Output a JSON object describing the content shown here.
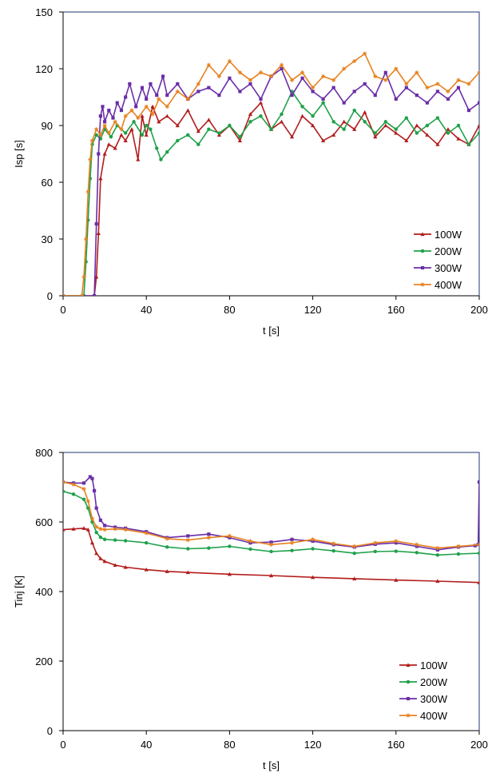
{
  "chart_data": [
    {
      "type": "line",
      "xlabel": "t [s]",
      "ylabel": "Isp [s]",
      "xlim": [
        0,
        200
      ],
      "ylim": [
        0,
        150
      ],
      "xticks": [
        "0",
        "40",
        "80",
        "120",
        "160",
        "200"
      ],
      "yticks": [
        "0",
        "30",
        "60",
        "90",
        "120",
        "150"
      ],
      "grid": false,
      "legend_position": "bottom-right",
      "series": [
        {
          "name": "100W",
          "color": "#b31c1c",
          "marker": "triangle",
          "x": [
            0,
            15,
            16,
            17,
            18,
            20,
            22,
            25,
            28,
            30,
            33,
            36,
            38,
            40,
            43,
            46,
            50,
            55,
            60,
            65,
            70,
            75,
            80,
            85,
            90,
            95,
            100,
            105,
            110,
            115,
            120,
            125,
            130,
            135,
            140,
            145,
            150,
            155,
            160,
            165,
            170,
            175,
            180,
            185,
            190,
            195,
            200
          ],
          "y": [
            0,
            0,
            10,
            33,
            62,
            75,
            80,
            78,
            85,
            82,
            88,
            72,
            95,
            85,
            100,
            92,
            95,
            90,
            98,
            87,
            93,
            85,
            90,
            82,
            96,
            102,
            88,
            92,
            84,
            95,
            90,
            82,
            85,
            92,
            88,
            97,
            84,
            90,
            86,
            82,
            90,
            85,
            80,
            88,
            83,
            80,
            90
          ]
        },
        {
          "name": "200W",
          "color": "#1fa14a",
          "marker": "circle",
          "x": [
            0,
            10,
            11,
            12,
            13,
            14,
            16,
            18,
            20,
            23,
            26,
            30,
            34,
            38,
            40,
            42,
            45,
            47,
            50,
            55,
            60,
            65,
            70,
            75,
            80,
            85,
            90,
            95,
            100,
            105,
            110,
            115,
            120,
            125,
            130,
            135,
            140,
            145,
            150,
            155,
            160,
            165,
            170,
            175,
            180,
            185,
            190,
            195,
            200
          ],
          "y": [
            0,
            0,
            18,
            40,
            62,
            80,
            85,
            83,
            88,
            84,
            90,
            86,
            92,
            85,
            90,
            88,
            78,
            72,
            76,
            82,
            85,
            80,
            88,
            86,
            90,
            84,
            92,
            95,
            88,
            96,
            108,
            100,
            95,
            102,
            92,
            88,
            98,
            92,
            86,
            92,
            88,
            94,
            86,
            90,
            94,
            86,
            90,
            80,
            86
          ]
        },
        {
          "name": "300W",
          "color": "#6a2ea8",
          "marker": "square",
          "x": [
            0,
            15,
            16,
            17,
            18,
            19,
            20,
            22,
            24,
            26,
            28,
            30,
            32,
            35,
            38,
            40,
            42,
            45,
            48,
            50,
            55,
            60,
            65,
            70,
            75,
            80,
            85,
            90,
            95,
            100,
            105,
            110,
            115,
            120,
            125,
            130,
            135,
            140,
            145,
            150,
            155,
            160,
            165,
            170,
            175,
            180,
            185,
            190,
            195,
            200
          ],
          "y": [
            0,
            0,
            38,
            75,
            95,
            100,
            92,
            98,
            94,
            102,
            98,
            105,
            112,
            100,
            110,
            104,
            112,
            106,
            116,
            106,
            112,
            104,
            108,
            110,
            106,
            115,
            108,
            112,
            104,
            116,
            120,
            106,
            115,
            108,
            104,
            110,
            102,
            108,
            112,
            106,
            118,
            104,
            110,
            106,
            102,
            108,
            104,
            110,
            98,
            102
          ]
        },
        {
          "name": "400W",
          "color": "#e6821f",
          "marker": "star",
          "x": [
            0,
            9,
            10,
            11,
            12,
            13,
            14,
            16,
            18,
            20,
            22,
            25,
            28,
            30,
            33,
            36,
            40,
            43,
            46,
            50,
            55,
            60,
            65,
            70,
            75,
            80,
            85,
            90,
            95,
            100,
            105,
            110,
            115,
            120,
            125,
            130,
            135,
            140,
            145,
            150,
            155,
            160,
            165,
            170,
            175,
            180,
            185,
            190,
            195,
            200
          ],
          "y": [
            0,
            0,
            10,
            30,
            55,
            72,
            82,
            88,
            85,
            90,
            86,
            92,
            88,
            95,
            98,
            94,
            100,
            96,
            104,
            100,
            108,
            104,
            112,
            122,
            116,
            124,
            118,
            114,
            118,
            116,
            122,
            114,
            118,
            110,
            116,
            114,
            120,
            124,
            128,
            116,
            114,
            120,
            112,
            118,
            110,
            112,
            108,
            114,
            112,
            118
          ]
        }
      ]
    },
    {
      "type": "line",
      "xlabel": "t [s]",
      "ylabel": "Tinj [K]",
      "xlim": [
        0,
        200
      ],
      "ylim": [
        0,
        800
      ],
      "xticks": [
        "0",
        "40",
        "80",
        "120",
        "160",
        "200"
      ],
      "yticks": [
        "0",
        "200",
        "400",
        "600",
        "800"
      ],
      "grid": false,
      "legend_position": "bottom-right",
      "series": [
        {
          "name": "100W",
          "color": "#b31c1c",
          "marker": "triangle",
          "x": [
            0,
            5,
            10,
            12,
            14,
            16,
            18,
            20,
            25,
            30,
            40,
            50,
            60,
            80,
            100,
            120,
            140,
            160,
            180,
            200
          ],
          "y": [
            578,
            580,
            582,
            578,
            540,
            510,
            495,
            487,
            476,
            470,
            463,
            458,
            455,
            450,
            446,
            441,
            437,
            433,
            430,
            426
          ]
        },
        {
          "name": "200W",
          "color": "#1fa14a",
          "marker": "circle",
          "x": [
            0,
            5,
            10,
            12,
            14,
            16,
            18,
            20,
            25,
            30,
            40,
            50,
            60,
            70,
            80,
            90,
            100,
            110,
            120,
            130,
            140,
            150,
            160,
            170,
            180,
            190,
            200
          ],
          "y": [
            688,
            680,
            665,
            640,
            600,
            570,
            556,
            550,
            548,
            546,
            540,
            528,
            523,
            525,
            530,
            522,
            515,
            518,
            523,
            517,
            510,
            515,
            516,
            512,
            505,
            508,
            510
          ]
        },
        {
          "name": "300W",
          "color": "#6a2ea8",
          "marker": "square",
          "x": [
            0,
            5,
            10,
            13,
            14,
            15,
            16,
            18,
            20,
            25,
            30,
            40,
            50,
            60,
            70,
            80,
            90,
            100,
            110,
            120,
            130,
            140,
            150,
            160,
            170,
            180,
            190,
            198,
            199.5,
            200
          ],
          "y": [
            715,
            712,
            712,
            730,
            725,
            690,
            640,
            605,
            590,
            585,
            582,
            572,
            555,
            560,
            565,
            555,
            540,
            542,
            550,
            545,
            535,
            528,
            536,
            540,
            530,
            520,
            528,
            532,
            535,
            715
          ]
        },
        {
          "name": "400W",
          "color": "#e6821f",
          "marker": "star",
          "x": [
            0,
            5,
            10,
            12,
            14,
            16,
            18,
            20,
            25,
            30,
            40,
            50,
            60,
            70,
            80,
            90,
            100,
            110,
            120,
            130,
            140,
            150,
            160,
            170,
            180,
            190,
            200
          ],
          "y": [
            715,
            708,
            695,
            660,
            610,
            586,
            580,
            578,
            580,
            578,
            568,
            552,
            548,
            555,
            560,
            545,
            535,
            540,
            550,
            538,
            530,
            540,
            545,
            535,
            525,
            530,
            535
          ]
        }
      ]
    }
  ]
}
